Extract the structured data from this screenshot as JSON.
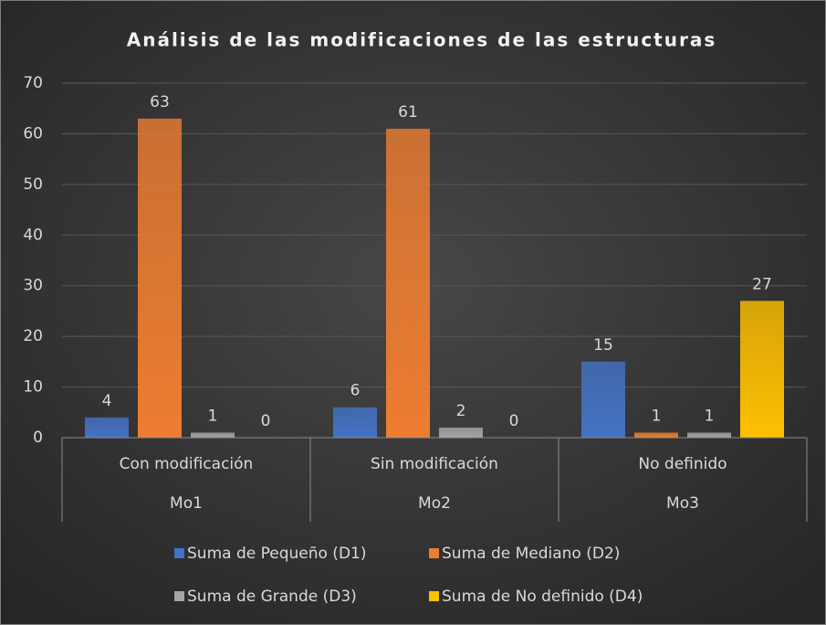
{
  "chart_data": {
    "type": "bar",
    "title": "Análisis de las modificaciones de las estructuras",
    "categories": [
      "Con modificación",
      "Sin modificación",
      "No definido"
    ],
    "category_groups": [
      "Mo1",
      "Mo2",
      "Mo3"
    ],
    "series": [
      {
        "name": "Suma de Pequeño (D1)",
        "color": "#4472c4",
        "values": [
          4,
          6,
          15
        ]
      },
      {
        "name": "Suma de Mediano (D2)",
        "color": "#ed7d31",
        "values": [
          63,
          61,
          1
        ]
      },
      {
        "name": "Suma de Grande (D3)",
        "color": "#a5a5a5",
        "values": [
          1,
          2,
          1
        ]
      },
      {
        "name": "Suma de No definido (D4)",
        "color": "#ffc000",
        "values": [
          0,
          0,
          27
        ]
      }
    ],
    "ylim": [
      0,
      70
    ],
    "yticks": [
      0,
      10,
      20,
      30,
      40,
      50,
      60,
      70
    ],
    "grid": true,
    "legend": "bottom"
  }
}
